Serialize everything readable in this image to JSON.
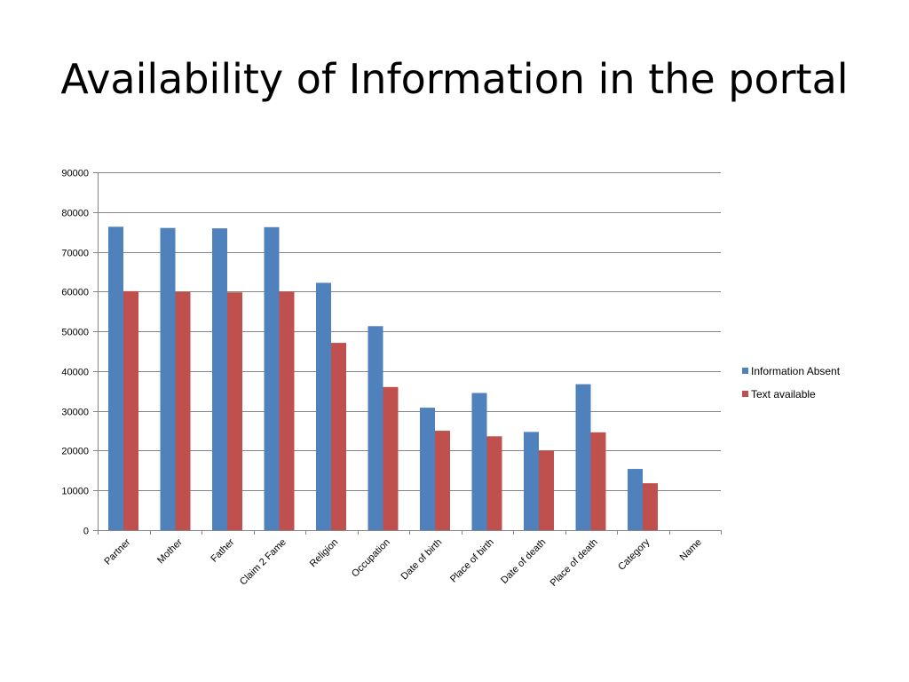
{
  "slide": {
    "title": "Availability of Information in the portal"
  },
  "chart_data": {
    "type": "bar",
    "categories": [
      "Partner",
      "Mother",
      "Father",
      "Claim 2 Fame",
      "Religion",
      "Occupation",
      "Date of birth",
      "Place of birth",
      "Date of death",
      "Place of death",
      "Category",
      "Name"
    ],
    "series": [
      {
        "name": "Information Absent",
        "color": "#4F81BD",
        "values": [
          76300,
          76000,
          75900,
          76200,
          62200,
          51300,
          30800,
          34500,
          24700,
          36700,
          15400,
          0
        ]
      },
      {
        "name": "Text available",
        "color": "#C0504D",
        "values": [
          60100,
          59900,
          59800,
          60000,
          47100,
          36000,
          25000,
          23600,
          20000,
          24600,
          11800,
          0
        ]
      }
    ],
    "ylim": [
      0,
      90000
    ],
    "yticks": [
      0,
      10000,
      20000,
      30000,
      40000,
      50000,
      60000,
      70000,
      80000,
      90000
    ],
    "grid": true,
    "legend_position": "right",
    "xlabel": "",
    "ylabel": ""
  }
}
